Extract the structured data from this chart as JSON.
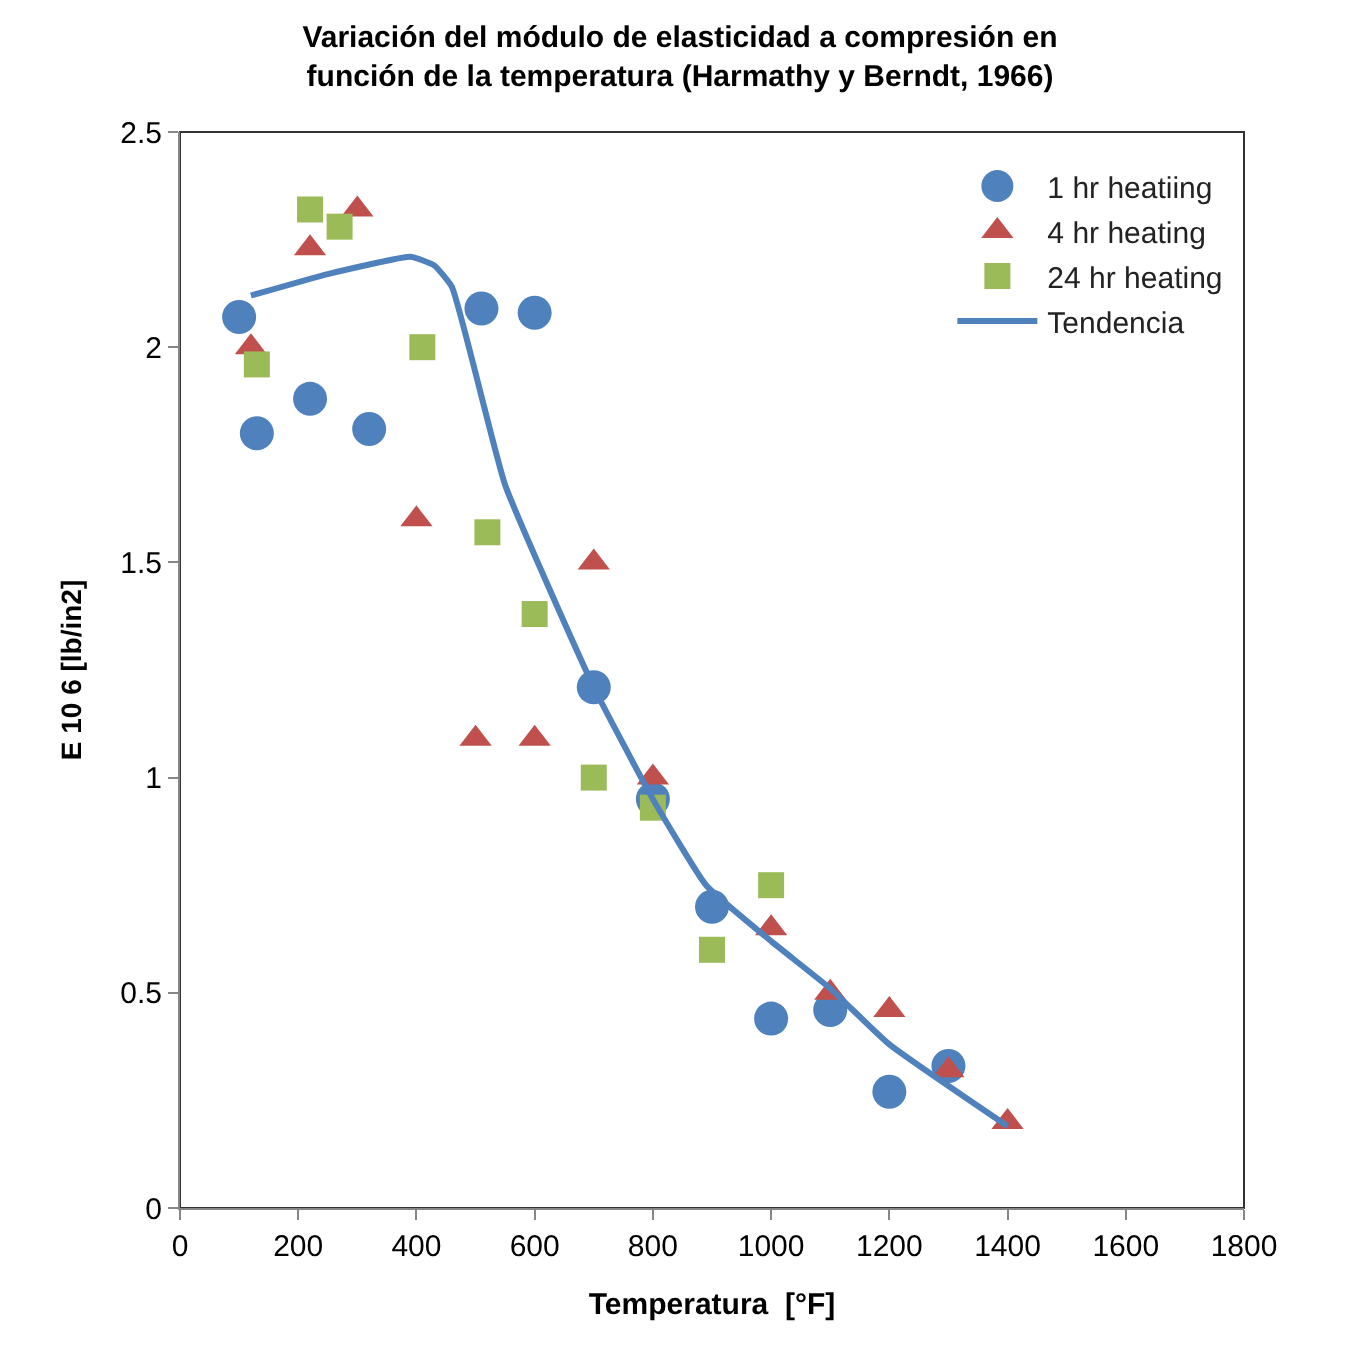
{
  "chart_data": {
    "type": "scatter",
    "title": "Variación del módulo de elasticidad a compresión en función de la temperatura (Harmathy y Berndt, 1966)",
    "xlabel": "Temperatura  [°F]",
    "ylabel": "E 10 6 [lb/in2]",
    "xlim": [
      0,
      1800
    ],
    "xticks": [
      0,
      200,
      400,
      600,
      800,
      1000,
      1200,
      1400,
      1600,
      1800
    ],
    "ylim": [
      0,
      2.5
    ],
    "yticks": [
      0,
      0.5,
      1,
      1.5,
      2,
      2.5
    ],
    "grid": false,
    "legend": "top right",
    "series": [
      {
        "name": "1 hr heatiing",
        "color": "#4f81bd",
        "marker": "circle",
        "x": [
          100,
          130,
          220,
          320,
          510,
          600,
          700,
          800,
          900,
          1000,
          1100,
          1200,
          1300
        ],
        "values": [
          2.07,
          1.8,
          1.88,
          1.81,
          2.09,
          2.08,
          1.21,
          0.95,
          0.7,
          0.44,
          0.46,
          0.27,
          0.33
        ]
      },
      {
        "name": "4 hr heating",
        "color": "#c0504d",
        "marker": "triangle",
        "x": [
          120,
          220,
          300,
          400,
          500,
          600,
          700,
          800,
          1000,
          1100,
          1200,
          1300,
          1400
        ],
        "values": [
          2.0,
          2.23,
          2.32,
          1.6,
          1.09,
          1.09,
          1.5,
          1.0,
          0.65,
          0.5,
          0.46,
          0.32,
          0.2
        ]
      },
      {
        "name": "24 hr heating",
        "color": "#9bbb59",
        "marker": "square",
        "x": [
          130,
          220,
          270,
          410,
          520,
          600,
          700,
          800,
          900,
          1000
        ],
        "values": [
          1.96,
          2.32,
          2.28,
          2.0,
          1.57,
          1.38,
          1.0,
          0.93,
          0.6,
          0.75
        ]
      },
      {
        "name": "Tendencia",
        "type": "line",
        "color": "#4f81bd",
        "line_style": "solid",
        "marker": "none",
        "x": [
          120,
          250,
          390,
          430,
          460,
          550,
          700,
          800,
          890,
          1000,
          1100,
          1200,
          1400
        ],
        "values": [
          2.12,
          2.17,
          2.21,
          2.19,
          2.14,
          1.68,
          1.21,
          0.95,
          0.75,
          0.62,
          0.51,
          0.38,
          0.19
        ]
      }
    ]
  }
}
